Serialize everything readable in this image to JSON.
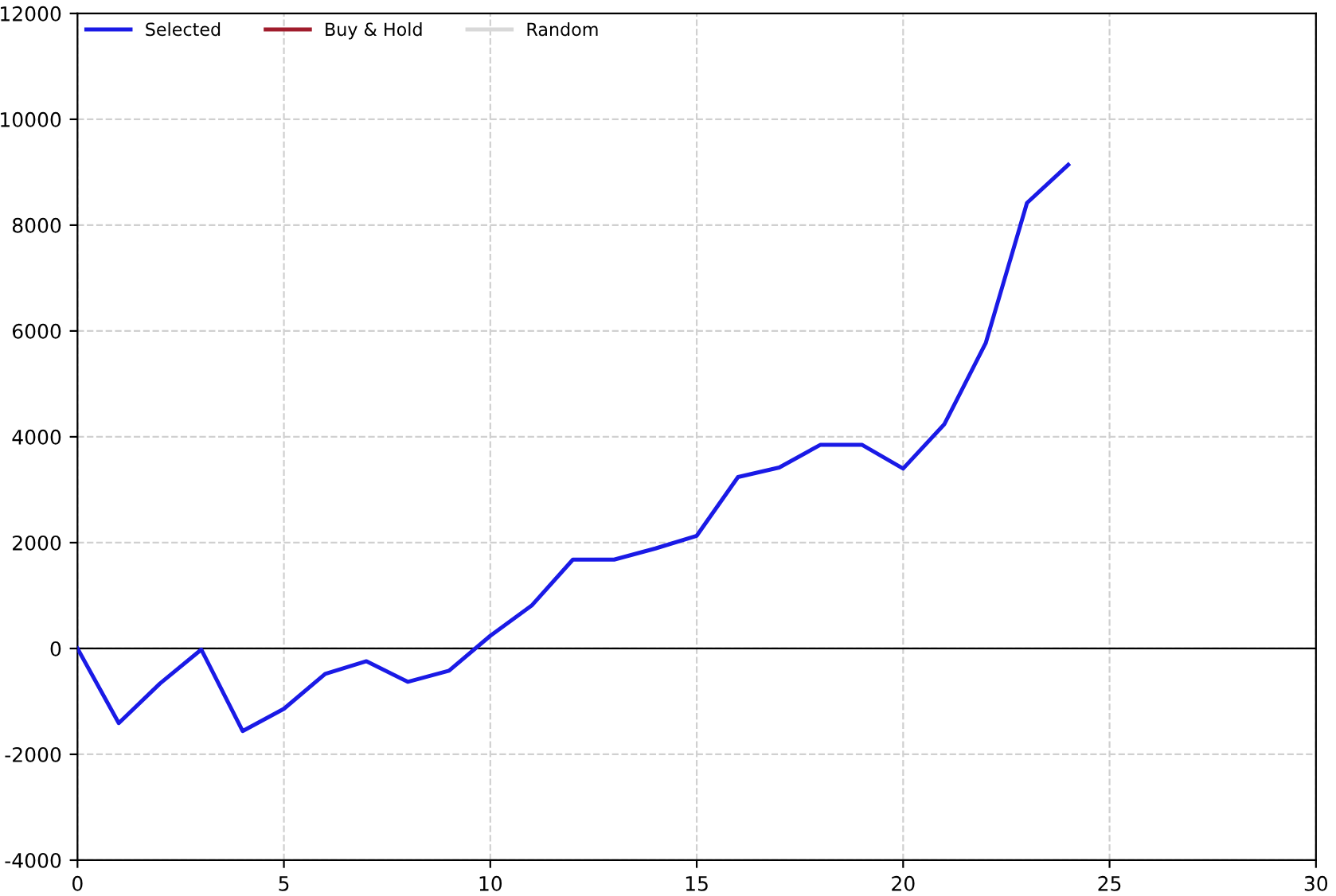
{
  "chart_data": {
    "type": "line",
    "x": [
      0,
      1,
      2,
      3,
      4,
      5,
      6,
      7,
      8,
      9,
      10,
      11,
      12,
      13,
      14,
      15,
      16,
      17,
      18,
      19,
      20,
      21,
      22,
      23,
      24
    ],
    "series": [
      {
        "name": "Selected",
        "color": "#1a1ae6",
        "values": [
          0,
          -1410,
          -660,
          -20,
          -1560,
          -1140,
          -480,
          -240,
          -630,
          -420,
          240,
          810,
          1680,
          1680,
          1890,
          2130,
          3240,
          3420,
          3850,
          3850,
          3400,
          4240,
          5770,
          8420,
          9140
        ]
      },
      {
        "name": "Buy & Hold",
        "color": "#a01c2c",
        "values": [
          null,
          null,
          null,
          null,
          null,
          null,
          null,
          null,
          null,
          null,
          null,
          null,
          null,
          null,
          null,
          null,
          null,
          null,
          null,
          null,
          null,
          null,
          null,
          null,
          null
        ]
      },
      {
        "name": "Random",
        "color": "#d8d8d8",
        "values": [
          null,
          null,
          null,
          null,
          null,
          null,
          null,
          null,
          null,
          null,
          null,
          null,
          null,
          null,
          null,
          null,
          null,
          null,
          null,
          null,
          null,
          null,
          null,
          null,
          null
        ]
      }
    ],
    "xlim": [
      0,
      30
    ],
    "xticks": [
      0,
      5,
      10,
      15,
      20,
      25,
      30
    ],
    "ylim": [
      -4000,
      12000
    ],
    "yticks": [
      -4000,
      -2000,
      0,
      2000,
      4000,
      6000,
      8000,
      10000,
      12000
    ],
    "ref_lines": [
      {
        "axis": "y",
        "value": 0,
        "color": "#000000"
      }
    ],
    "grid": true,
    "legend": "top left",
    "marker": "none",
    "line_style": "solid"
  }
}
